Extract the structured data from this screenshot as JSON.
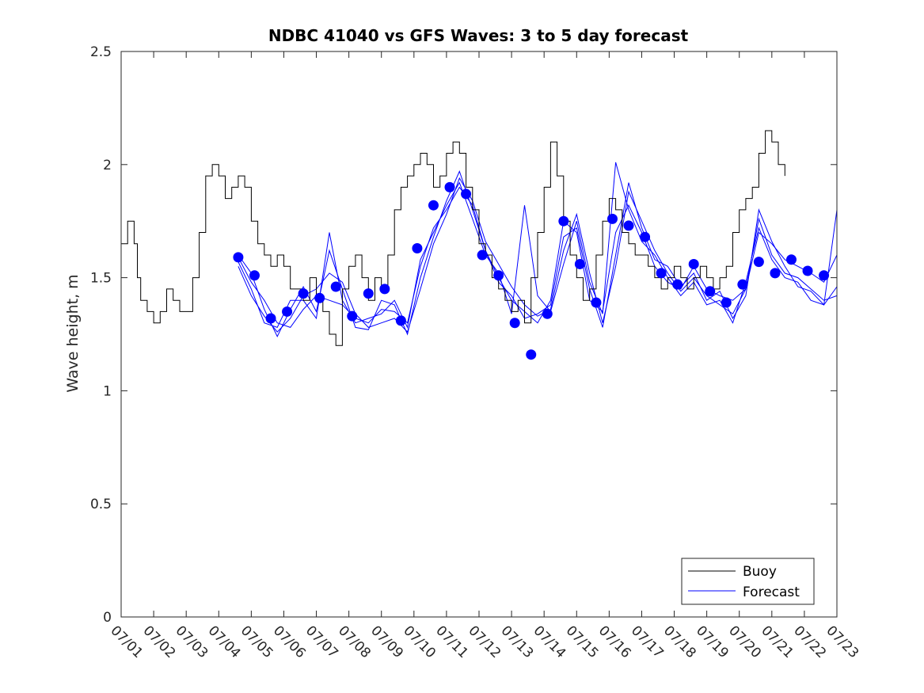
{
  "chart_data": {
    "type": "line",
    "title": "NDBC 41040 vs GFS Waves: 3 to 5 day forecast",
    "xlabel": "",
    "ylabel": "Wave height, m",
    "xlim": [
      0,
      22
    ],
    "ylim": [
      0,
      2.5
    ],
    "x_ticks": [
      0,
      1,
      2,
      3,
      4,
      5,
      6,
      7,
      8,
      9,
      10,
      11,
      12,
      13,
      14,
      15,
      16,
      17,
      18,
      19,
      20,
      21,
      22
    ],
    "x_tick_labels": [
      "07/01",
      "07/02",
      "07/03",
      "07/04",
      "07/05",
      "07/06",
      "07/07",
      "07/08",
      "07/09",
      "07/10",
      "07/11",
      "07/12",
      "07/13",
      "07/14",
      "07/15",
      "07/16",
      "07/17",
      "07/18",
      "07/19",
      "07/20",
      "07/21",
      "07/22",
      "07/23"
    ],
    "y_ticks": [
      0,
      0.5,
      1,
      1.5,
      2,
      2.5
    ],
    "y_tick_labels": [
      "0",
      "0.5",
      "1",
      "1.5",
      "2",
      "2.5"
    ],
    "grid": false,
    "legend_position": "bottom-right",
    "legend": [
      "Buoy",
      "Forecast"
    ],
    "colors": {
      "buoy": "#000000",
      "forecast": "#0000ff",
      "axes": "#262626"
    },
    "series": [
      {
        "name": "Buoy",
        "x": [
          0.0,
          0.2,
          0.4,
          0.5,
          0.6,
          0.8,
          1.0,
          1.2,
          1.4,
          1.6,
          1.8,
          2.0,
          2.2,
          2.4,
          2.6,
          2.8,
          3.0,
          3.2,
          3.4,
          3.6,
          3.8,
          4.0,
          4.2,
          4.4,
          4.6,
          4.8,
          5.0,
          5.2,
          5.4,
          5.6,
          5.8,
          6.0,
          6.2,
          6.4,
          6.6,
          6.8,
          7.0,
          7.2,
          7.4,
          7.6,
          7.8,
          8.0,
          8.2,
          8.4,
          8.6,
          8.8,
          9.0,
          9.2,
          9.4,
          9.6,
          9.8,
          10.0,
          10.2,
          10.4,
          10.6,
          10.8,
          11.0,
          11.2,
          11.4,
          11.6,
          11.8,
          12.0,
          12.2,
          12.4,
          12.6,
          12.8,
          13.0,
          13.2,
          13.4,
          13.6,
          13.8,
          14.0,
          14.2,
          14.4,
          14.6,
          14.8,
          15.0,
          15.2,
          15.4,
          15.6,
          15.8,
          16.0,
          16.2,
          16.4,
          16.6,
          16.8,
          17.0,
          17.2,
          17.4,
          17.6,
          17.8,
          18.0,
          18.2,
          18.4,
          18.6,
          18.8,
          19.0,
          19.2,
          19.4,
          19.6,
          19.8,
          20.0,
          20.2,
          20.4,
          20.6,
          20.8,
          21.0,
          21.2,
          21.4,
          21.6,
          21.8,
          22.0
        ],
        "values": [
          1.65,
          1.75,
          1.65,
          1.5,
          1.4,
          1.35,
          1.3,
          1.35,
          1.45,
          1.4,
          1.35,
          1.35,
          1.5,
          1.7,
          1.95,
          2.0,
          1.95,
          1.85,
          1.9,
          1.95,
          1.9,
          1.75,
          1.65,
          1.6,
          1.55,
          1.6,
          1.55,
          1.45,
          1.45,
          1.4,
          1.5,
          1.4,
          1.35,
          1.25,
          1.2,
          1.45,
          1.55,
          1.6,
          1.5,
          1.4,
          1.5,
          1.45,
          1.6,
          1.8,
          1.9,
          1.95,
          2.0,
          2.05,
          2.0,
          1.9,
          1.95,
          2.05,
          2.1,
          2.05,
          1.9,
          1.8,
          1.65,
          1.6,
          1.5,
          1.45,
          1.4,
          1.35,
          1.4,
          1.3,
          1.5,
          1.7,
          1.9,
          2.1,
          1.95,
          1.75,
          1.6,
          1.5,
          1.4,
          1.45,
          1.6,
          1.75,
          1.85,
          1.8,
          1.7,
          1.65,
          1.6,
          1.6,
          1.55,
          1.5,
          1.45,
          1.5,
          1.55,
          1.5,
          1.45,
          1.5,
          1.55,
          1.5,
          1.45,
          1.5,
          1.55,
          1.7,
          1.8,
          1.85,
          1.9,
          2.05,
          2.15,
          2.1,
          2.0,
          1.95,
          null,
          null,
          null,
          null,
          null,
          null,
          null,
          null
        ]
      },
      {
        "name": "Forecast",
        "markers": {
          "x": [
            3.6,
            4.1,
            4.6,
            5.1,
            5.6,
            6.1,
            6.6,
            7.1,
            7.6,
            8.1,
            8.6,
            9.1,
            9.6,
            10.1,
            10.6,
            11.1,
            11.6,
            12.1,
            12.6,
            13.1,
            13.6,
            14.1,
            14.6,
            15.1,
            15.6,
            16.1,
            16.6,
            17.1,
            17.6,
            18.1,
            18.6,
            19.1,
            19.6,
            20.1,
            20.6,
            21.1,
            21.6
          ],
          "values": [
            1.59,
            1.51,
            1.32,
            1.35,
            1.43,
            1.41,
            1.46,
            1.33,
            1.43,
            1.45,
            1.31,
            1.63,
            1.82,
            1.9,
            1.87,
            1.6,
            1.51,
            1.3,
            1.16,
            1.34,
            1.75,
            1.56,
            1.39,
            1.76,
            1.73,
            1.68,
            1.52,
            1.47,
            1.56,
            1.44,
            1.39,
            1.47,
            1.57,
            1.52,
            1.58,
            1.53,
            1.51
          ]
        },
        "lines": [
          {
            "x": [
              3.6,
              4.0,
              4.4,
              4.8,
              5.2,
              5.6,
              6.0,
              6.4,
              6.8,
              7.2,
              7.6,
              8.0,
              8.4,
              8.8,
              9.2,
              9.6,
              10.0,
              10.4,
              10.8,
              11.2,
              11.6,
              12.0,
              12.4,
              12.8,
              13.2,
              13.6,
              14.0,
              14.4,
              14.8,
              15.2,
              15.6,
              16.0,
              16.4,
              16.8,
              17.2,
              17.6,
              18.0,
              18.4,
              18.8,
              19.2,
              19.6,
              20.0,
              20.4,
              20.8,
              21.2,
              21.6,
              22.0
            ],
            "values": [
              1.59,
              1.48,
              1.4,
              1.3,
              1.28,
              1.36,
              1.42,
              1.4,
              1.38,
              1.32,
              1.3,
              1.36,
              1.35,
              1.3,
              1.55,
              1.72,
              1.8,
              1.9,
              1.82,
              1.62,
              1.5,
              1.4,
              1.35,
              1.3,
              1.4,
              1.75,
              1.7,
              1.4,
              1.35,
              1.7,
              1.82,
              1.7,
              1.55,
              1.48,
              1.45,
              1.55,
              1.45,
              1.42,
              1.4,
              1.45,
              1.7,
              1.65,
              1.58,
              1.55,
              1.52,
              1.48,
              1.6
            ]
          },
          {
            "x": [
              3.6,
              4.0,
              4.4,
              4.8,
              5.2,
              5.6,
              6.0,
              6.4,
              6.8,
              7.2,
              7.6,
              8.0,
              8.4,
              8.8,
              9.2,
              9.6,
              10.0,
              10.4,
              10.8,
              11.2,
              11.6,
              12.0,
              12.4,
              12.8,
              13.2,
              13.6,
              14.0,
              14.4,
              14.8,
              15.2,
              15.6,
              16.0,
              16.4,
              16.8,
              17.2,
              17.6,
              18.0,
              18.4,
              18.8,
              19.2,
              19.6,
              20.0,
              20.4,
              20.8,
              21.2,
              21.6,
              22.0
            ],
            "values": [
              1.55,
              1.42,
              1.33,
              1.26,
              1.32,
              1.42,
              1.45,
              1.52,
              1.48,
              1.34,
              1.28,
              1.3,
              1.32,
              1.26,
              1.45,
              1.65,
              1.78,
              1.94,
              1.84,
              1.66,
              1.56,
              1.46,
              1.38,
              1.33,
              1.36,
              1.62,
              1.78,
              1.52,
              1.3,
              1.55,
              1.88,
              1.75,
              1.62,
              1.52,
              1.44,
              1.5,
              1.42,
              1.38,
              1.34,
              1.45,
              1.76,
              1.6,
              1.52,
              1.5,
              1.45,
              1.4,
              1.42
            ]
          },
          {
            "x": [
              3.6,
              4.0,
              4.4,
              4.8,
              5.2,
              5.6,
              6.0,
              6.4,
              6.8,
              7.2,
              7.6,
              8.0,
              8.4,
              8.8,
              9.2,
              9.6,
              10.0,
              10.4,
              10.8,
              11.2,
              11.6,
              12.0,
              12.4,
              12.8,
              13.2,
              13.6,
              14.0,
              14.4,
              14.8,
              15.2,
              15.6,
              16.0,
              16.4,
              16.8,
              17.2,
              17.6,
              18.0,
              18.4,
              18.8,
              19.2,
              19.6,
              20.0,
              20.4,
              20.8,
              21.2,
              21.6,
              22.0
            ],
            "values": [
              1.6,
              1.52,
              1.36,
              1.24,
              1.36,
              1.46,
              1.35,
              1.62,
              1.45,
              1.28,
              1.27,
              1.4,
              1.38,
              1.25,
              1.5,
              1.68,
              1.84,
              1.97,
              1.8,
              1.62,
              1.48,
              1.42,
              1.32,
              1.34,
              1.38,
              1.68,
              1.72,
              1.45,
              1.28,
              1.6,
              1.92,
              1.72,
              1.58,
              1.55,
              1.46,
              1.52,
              1.4,
              1.44,
              1.32,
              1.42,
              1.8,
              1.66,
              1.55,
              1.46,
              1.44,
              1.38,
              1.8
            ]
          },
          {
            "x": [
              3.6,
              4.0,
              4.4,
              4.8,
              5.2,
              5.6,
              6.0,
              6.4,
              6.8,
              7.2,
              7.6,
              8.0,
              8.4,
              8.8,
              9.2,
              9.6,
              10.0,
              10.4,
              10.8,
              11.2,
              11.6,
              12.0,
              12.4,
              12.8,
              13.2,
              13.6,
              14.0,
              14.4,
              14.8,
              15.2,
              15.6,
              16.0,
              16.4,
              16.8,
              17.2,
              17.6,
              18.0,
              18.4,
              18.8,
              19.2,
              19.6,
              20.0,
              20.4,
              20.8,
              21.2,
              21.6,
              22.0
            ],
            "values": [
              1.57,
              1.45,
              1.3,
              1.28,
              1.4,
              1.4,
              1.32,
              1.7,
              1.4,
              1.3,
              1.32,
              1.34,
              1.4,
              1.28,
              1.58,
              1.7,
              1.82,
              1.92,
              1.76,
              1.6,
              1.52,
              1.34,
              1.82,
              1.42,
              1.35,
              1.56,
              1.75,
              1.48,
              1.34,
              2.01,
              1.8,
              1.66,
              1.6,
              1.5,
              1.42,
              1.48,
              1.38,
              1.4,
              1.3,
              1.48,
              1.72,
              1.58,
              1.5,
              1.48,
              1.4,
              1.38,
              1.46
            ]
          }
        ]
      }
    ]
  }
}
